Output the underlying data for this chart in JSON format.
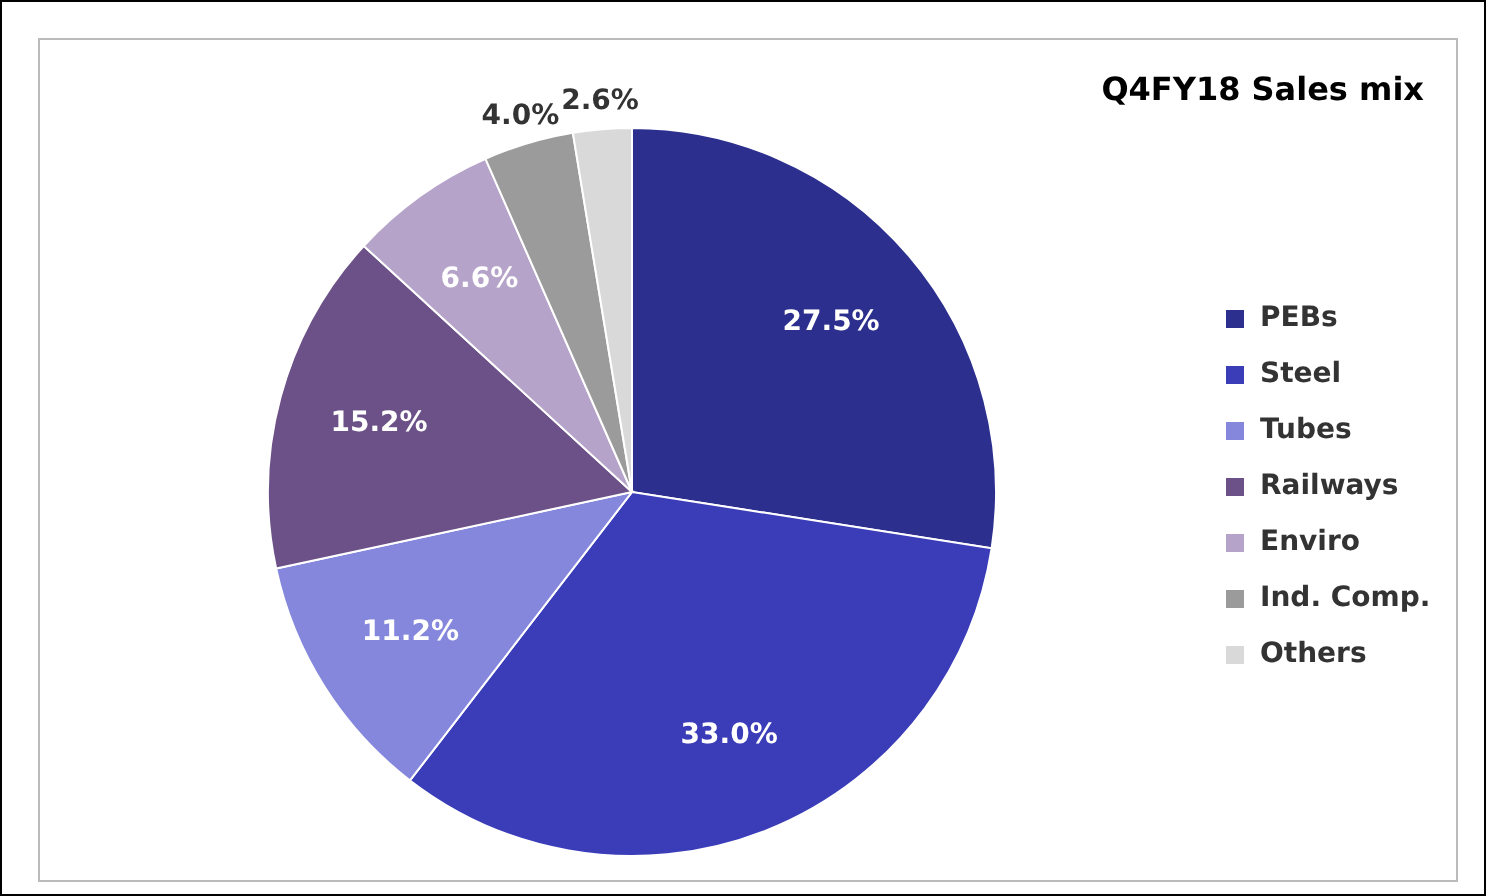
{
  "chart_data": {
    "type": "pie",
    "title": "Q4FY18 Sales mix",
    "categories": [
      "PEBs",
      "Steel",
      "Tubes",
      "Railways",
      "Enviro",
      "Ind. Comp.",
      "Others"
    ],
    "values": [
      27.5,
      33.0,
      11.2,
      15.2,
      6.6,
      4.0,
      2.6
    ],
    "colors": [
      "#2c2f8e",
      "#3a3cb8",
      "#8587dd",
      "#6b5187",
      "#b6a3c9",
      "#9b9b9b",
      "#d9d9d9"
    ],
    "value_labels": [
      "27.5%",
      "33.0%",
      "11.2%",
      "15.2%",
      "6.6%",
      "4.0%",
      "2.6%"
    ],
    "legend": "right"
  }
}
